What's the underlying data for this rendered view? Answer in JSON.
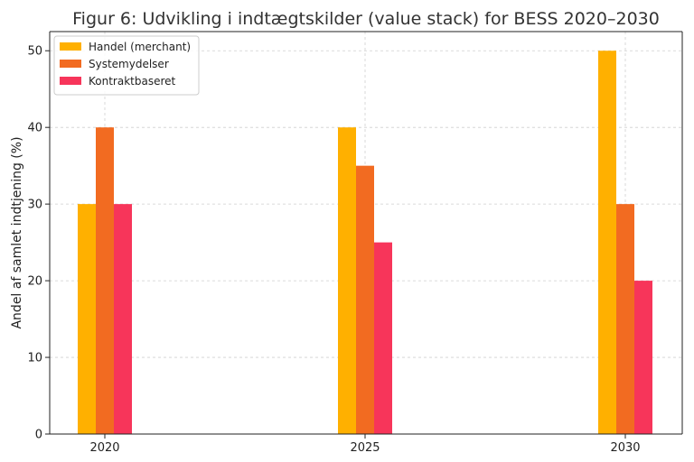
{
  "chart_data": {
    "type": "bar",
    "title": "Figur 6: Udvikling i indtægtskilder (value stack) for BESS 2020–2030",
    "xlabel": "",
    "ylabel": "Andel af samlet indtjening (%)",
    "categories": [
      "2020",
      "2025",
      "2030"
    ],
    "series": [
      {
        "name": "Handel (merchant)",
        "values": [
          30,
          40,
          50
        ],
        "color": "#FFB000"
      },
      {
        "name": "Systemydelser",
        "values": [
          40,
          35,
          30
        ],
        "color": "#F26B21"
      },
      {
        "name": "Kontraktbaseret",
        "values": [
          30,
          25,
          20
        ],
        "color": "#F7355A"
      }
    ],
    "ylim": [
      0,
      52.5
    ],
    "yticks": [
      0,
      10,
      20,
      30,
      40,
      50
    ],
    "grid": true,
    "legend_position": "top-left"
  }
}
